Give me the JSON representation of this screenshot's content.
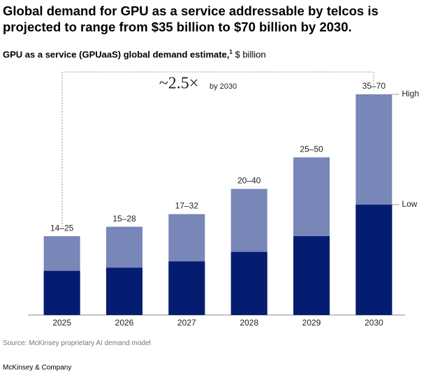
{
  "chart_data": {
    "type": "range_bar",
    "title": "Global demand for GPU as a service addressable by telcos is projected to range from $35 billion to $70 billion by 2030.",
    "subtitle": "GPU as a service (GPUaaS) global demand estimate,",
    "subtitle_footnote": "1",
    "unit": "$ billion",
    "categories": [
      "2025",
      "2026",
      "2027",
      "2028",
      "2029",
      "2030"
    ],
    "series": [
      {
        "name": "High",
        "color": "#7886b8",
        "values": [
          25,
          28,
          32,
          40,
          50,
          70
        ]
      },
      {
        "name": "Low",
        "color": "#051d70",
        "values": [
          14,
          15,
          17,
          20,
          25,
          35
        ]
      }
    ],
    "range_labels": [
      "14–25",
      "15–28",
      "17–32",
      "20–40",
      "25–50",
      "35–70"
    ],
    "annotation": "~2.5×",
    "annotation_note": "by 2030",
    "ylim": [
      0,
      70
    ],
    "source": "Source: McKinsey proprietary AI demand model",
    "footer": "McKinsey & Company"
  }
}
